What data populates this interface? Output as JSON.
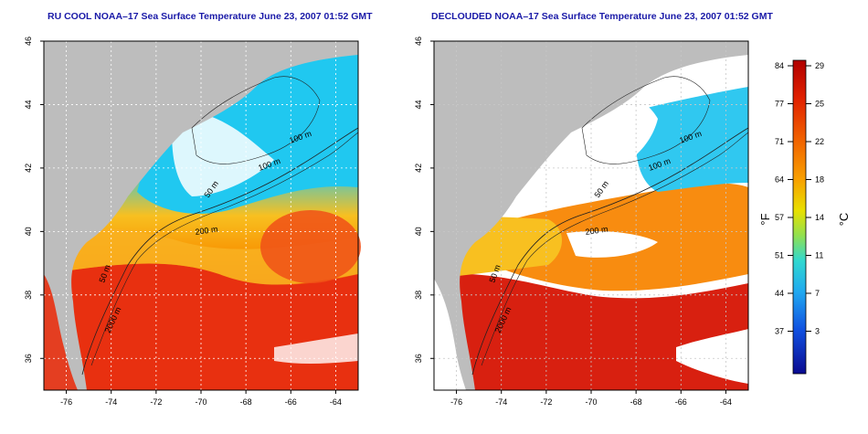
{
  "titles": {
    "left": "RU COOL NOAA–17 Sea Surface Temperature June 23, 2007 01:52 GMT",
    "right": "DECLOUDED NOAA–17 Sea Surface Temperature June 23, 2007 01:52 GMT"
  },
  "lat_ticks": [
    "46",
    "44",
    "42",
    "40",
    "38",
    "36"
  ],
  "lon_ticks": [
    "-76",
    "-74",
    "-72",
    "-70",
    "-68",
    "-66",
    "-64"
  ],
  "contours": {
    "left": [
      "100 m",
      "100 m",
      "50 m",
      "200 m",
      "50 m",
      "2000 m"
    ],
    "right": [
      "100 m",
      "100 m",
      "50 m",
      "200 m",
      "50 m",
      "2000 m"
    ]
  },
  "colorbar": {
    "f_label": "°F",
    "c_label": "°C",
    "f_ticks": [
      "84",
      "77",
      "71",
      "64",
      "57",
      "51",
      "44",
      "37"
    ],
    "c_ticks": [
      "29",
      "25",
      "22",
      "18",
      "14",
      "11",
      "7",
      "3"
    ],
    "colors": [
      "#c00000",
      "#e02000",
      "#f05000",
      "#f88000",
      "#f8b000",
      "#f8e000",
      "#c0f020",
      "#70e070",
      "#30d8d0",
      "#20b0f0",
      "#1070f0",
      "#1030d0",
      "#1010a0"
    ]
  },
  "colors": {
    "land": "#bdbdbd",
    "cloud": "#ffffff",
    "title": "#1a1aa8"
  }
}
